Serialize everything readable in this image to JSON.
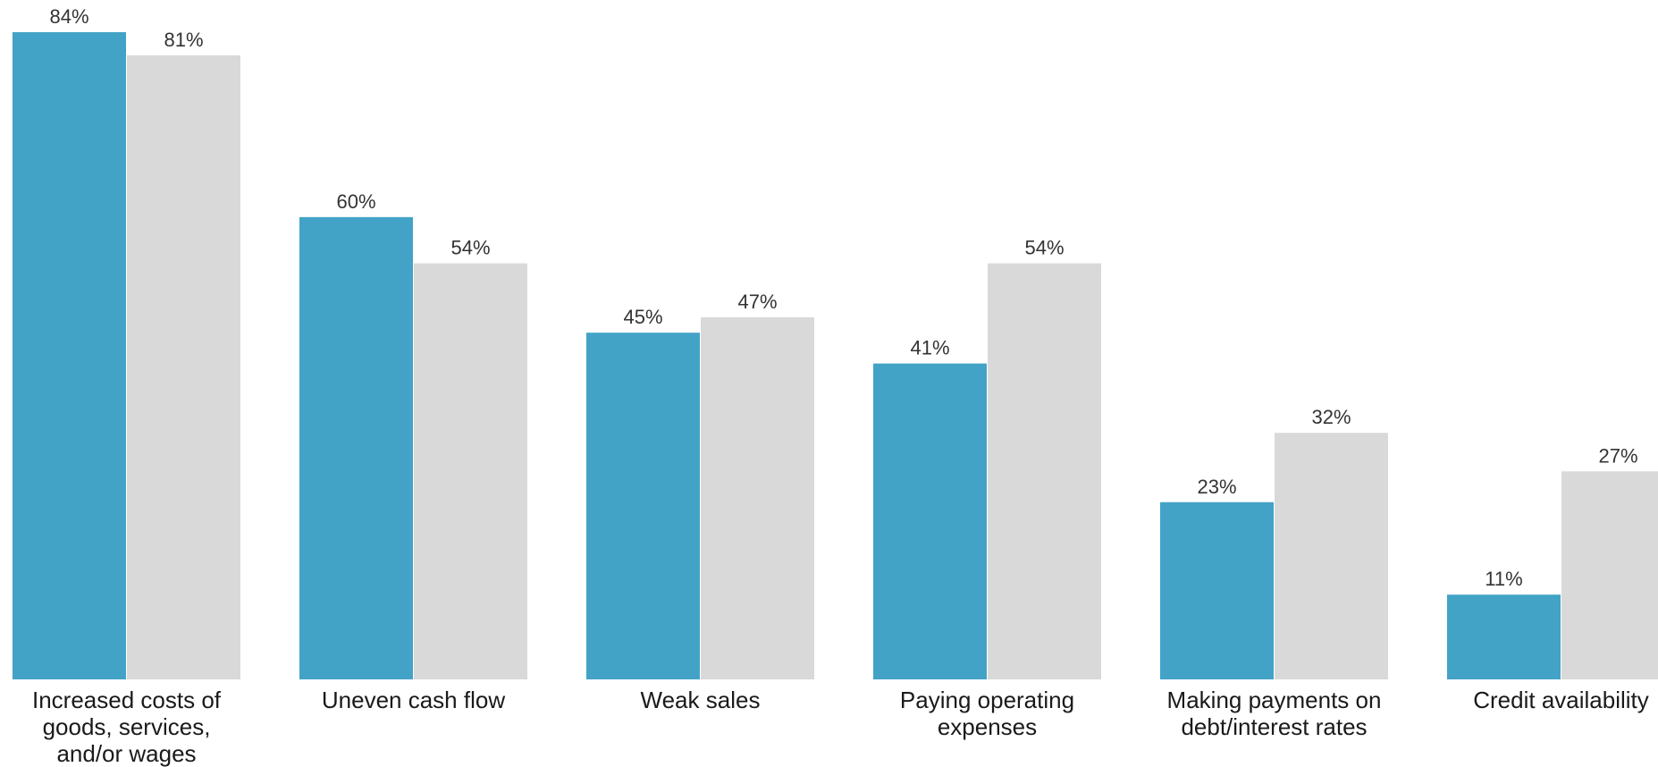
{
  "chart_data": {
    "type": "bar",
    "categories": [
      [
        "Increased costs of",
        "goods, services,",
        "and/or wages"
      ],
      [
        "Uneven cash flow"
      ],
      [
        "Weak sales"
      ],
      [
        "Paying operating",
        "expenses"
      ],
      [
        "Making payments on",
        "debt/interest rates"
      ],
      [
        "Credit availability"
      ]
    ],
    "series": [
      {
        "color": "#43a3c7",
        "values": [
          84,
          60,
          45,
          41,
          23,
          11
        ],
        "value_labels": [
          "84%",
          "60%",
          "45%",
          "41%",
          "23%",
          "11%"
        ]
      },
      {
        "color": "#d9d9d9",
        "values": [
          81,
          54,
          47,
          54,
          32,
          27
        ],
        "value_labels": [
          "81%",
          "54%",
          "47%",
          "54%",
          "32%",
          "27%"
        ]
      }
    ],
    "ylim": [
      0,
      84
    ],
    "grid": false,
    "legend": "none",
    "title": "",
    "xlabel": "",
    "ylabel": ""
  }
}
